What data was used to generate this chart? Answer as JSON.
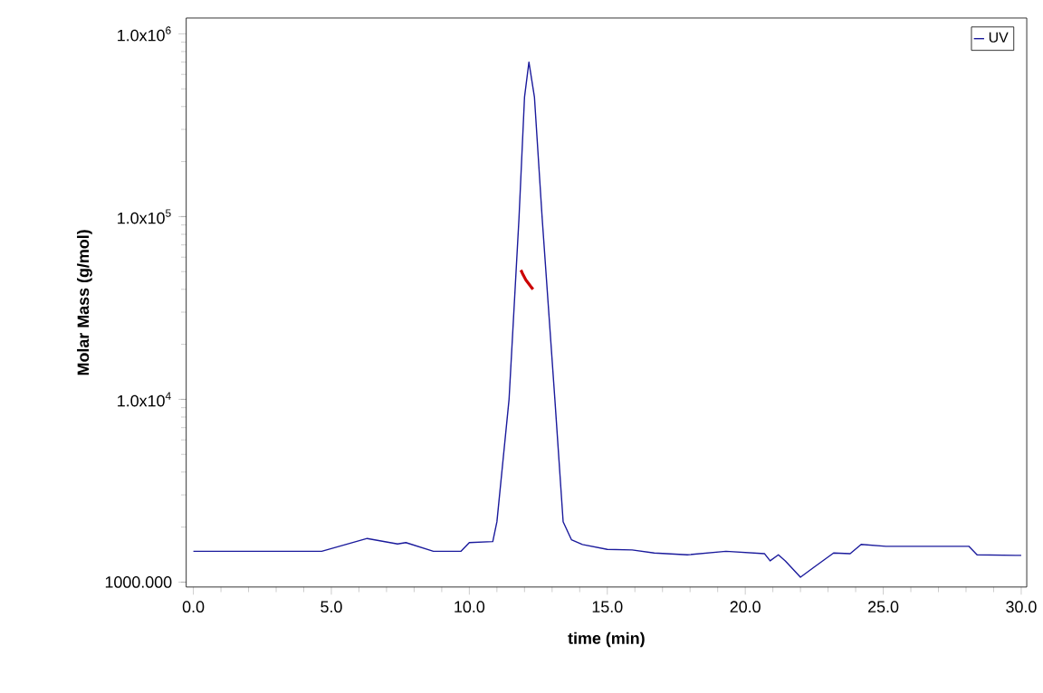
{
  "chart_data": {
    "type": "line",
    "xlabel": "time (min)",
    "ylabel": "Molar Mass (g/mol)",
    "log": "y",
    "legend": "top right",
    "grid": false,
    "marker": "none",
    "line_style": "solid",
    "xlim": [
      -0.26,
      30.2
    ],
    "ylim": [
      940,
      1220000
    ],
    "xticks": [
      {
        "value": 0,
        "label": "0.0"
      },
      {
        "value": 5,
        "label": "5.0"
      },
      {
        "value": 10,
        "label": "10.0"
      },
      {
        "value": 15,
        "label": "15.0"
      },
      {
        "value": 20,
        "label": "20.0"
      },
      {
        "value": 25,
        "label": "25.0"
      },
      {
        "value": 30,
        "label": "30.0"
      }
    ],
    "yticks": [
      {
        "value": 1000,
        "label": "1000.000"
      },
      {
        "value": 10000,
        "label": "1.0x10$^{4}$"
      },
      {
        "value": 100000,
        "label": "1.0x10$^{5}$"
      },
      {
        "value": 1000000,
        "label": "1.0x10$^{6}$"
      }
    ],
    "series": [
      {
        "name": "UV",
        "color": "#1a1a9c",
        "x": [
          0,
          4.65,
          6.3,
          7.4,
          7.7,
          8.7,
          9.7,
          10.0,
          10.85,
          11.0,
          11.44,
          11.8,
          12.0,
          12.16,
          12.36,
          12.64,
          13.1,
          13.4,
          13.7,
          14.1,
          15.0,
          15.9,
          16.7,
          17.9,
          19.3,
          20.7,
          20.9,
          21.2,
          21.45,
          22.0,
          22.5,
          23.2,
          23.8,
          24.2,
          25.1,
          28.1,
          28.4,
          29.8,
          30.0
        ],
        "values": [
          1475,
          1475,
          1733,
          1618,
          1645,
          1475,
          1475,
          1645,
          1667,
          2140,
          10000,
          98000,
          450000,
          700000,
          450000,
          98000,
          10000,
          2140,
          1706,
          1607,
          1510,
          1500,
          1443,
          1410,
          1475,
          1430,
          1307,
          1410,
          1307,
          1064,
          1210,
          1443,
          1430,
          1607,
          1570,
          1570,
          1410,
          1400,
          1400
        ]
      },
      {
        "color": "#cc0000",
        "x": [
          11.87,
          11.95,
          12.05,
          12.15,
          12.25,
          12.31
        ],
        "values": [
          51000,
          48000,
          45000,
          43000,
          41000,
          40000
        ]
      }
    ]
  }
}
